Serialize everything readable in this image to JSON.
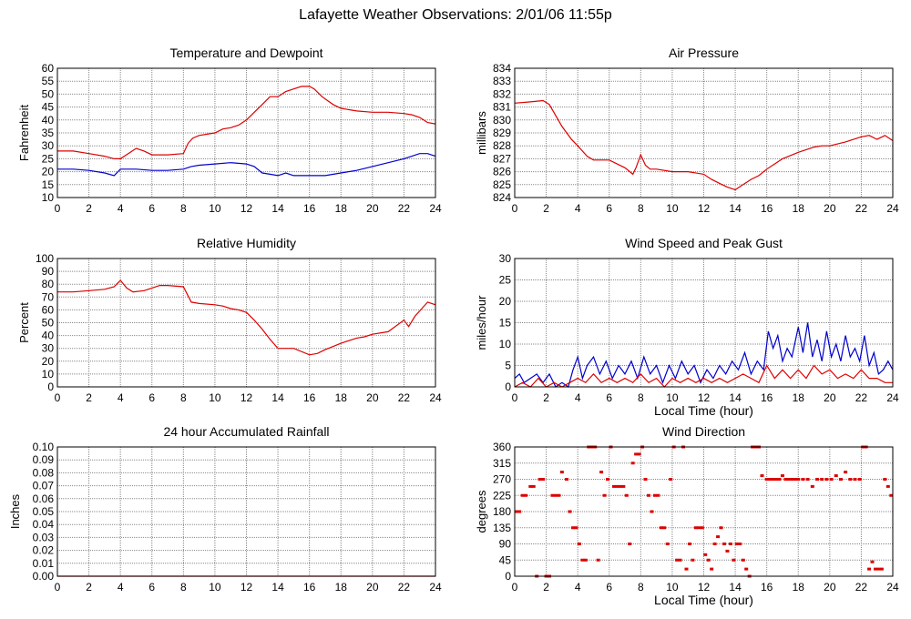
{
  "title": "Lafayette Weather Observations: 2/01/06 11:55p",
  "colors": {
    "red": "#dd0000",
    "blue": "#0000cc",
    "grid": "#888888",
    "frame": "#000000"
  },
  "chart_data": [
    {
      "id": "temperature",
      "type": "line",
      "title": "Temperature and Dewpoint",
      "xlabel": "",
      "ylabel": "Fahrenheit",
      "xlim": [
        0,
        24
      ],
      "ylim": [
        10,
        60
      ],
      "xticks": [
        0,
        2,
        4,
        6,
        8,
        10,
        12,
        14,
        16,
        18,
        20,
        22,
        24
      ],
      "yticks": [
        10,
        15,
        20,
        25,
        30,
        35,
        40,
        45,
        50,
        55,
        60
      ],
      "grid": true,
      "series": [
        {
          "color": "#dd0000",
          "x": [
            0,
            1,
            2,
            3,
            3.6,
            4,
            4.5,
            5,
            5.5,
            6,
            7,
            8,
            8.3,
            8.6,
            9,
            9.5,
            10,
            10.5,
            11,
            11.5,
            12,
            12.5,
            13,
            13.5,
            14,
            14.5,
            15,
            15.5,
            16,
            16.3,
            16.8,
            17.5,
            18,
            19,
            20,
            21,
            22,
            22.5,
            23,
            23.5,
            24
          ],
          "y": [
            28,
            28,
            27,
            26,
            25,
            25,
            27,
            29,
            28,
            26.5,
            26.5,
            27,
            31,
            33,
            34,
            34.5,
            35,
            36.5,
            37,
            38,
            40,
            43,
            46,
            49,
            49,
            51,
            52,
            53,
            53,
            52,
            49,
            46,
            44.5,
            43.5,
            43,
            43,
            42.5,
            42,
            41,
            39,
            38.5
          ]
        },
        {
          "color": "#0000cc",
          "x": [
            0,
            1,
            2,
            3,
            3.6,
            4,
            5,
            6,
            7,
            8,
            8.5,
            9,
            10,
            11,
            12,
            12.5,
            13,
            13.5,
            14,
            14.5,
            15,
            16,
            17,
            18,
            19,
            20,
            21,
            22,
            22.5,
            23,
            23.5,
            24
          ],
          "y": [
            21,
            21,
            20.5,
            19.5,
            18.5,
            21,
            21,
            20.5,
            20.5,
            21,
            22,
            22.5,
            23,
            23.5,
            23,
            22,
            19.5,
            19,
            18.5,
            19.5,
            18.5,
            18.5,
            18.5,
            19.5,
            20.5,
            22,
            23.5,
            25,
            26,
            27,
            27,
            26
          ]
        }
      ]
    },
    {
      "id": "pressure",
      "type": "line",
      "title": "Air Pressure",
      "xlabel": "",
      "ylabel": "millibars",
      "xlim": [
        0,
        24
      ],
      "ylim": [
        824,
        834
      ],
      "xticks": [
        0,
        2,
        4,
        6,
        8,
        10,
        12,
        14,
        16,
        18,
        20,
        22,
        24
      ],
      "yticks": [
        824,
        825,
        826,
        827,
        828,
        829,
        830,
        831,
        832,
        833,
        834
      ],
      "grid": true,
      "series": [
        {
          "color": "#dd0000",
          "x": [
            0,
            1,
            1.8,
            2.2,
            3,
            3.6,
            4,
            4.6,
            5,
            6,
            7,
            7.5,
            7.7,
            8,
            8.3,
            8.6,
            9,
            10,
            11,
            12,
            12.5,
            13,
            13.5,
            14,
            14.5,
            15,
            15.5,
            16,
            16.5,
            17,
            18,
            19,
            19.5,
            20,
            21,
            22,
            22.5,
            23,
            23.5,
            24
          ],
          "y": [
            831.3,
            831.4,
            831.5,
            831.2,
            829.5,
            828.5,
            828,
            827.2,
            826.9,
            826.9,
            826.3,
            825.8,
            826.3,
            827.3,
            826.5,
            826.2,
            826.2,
            826.0,
            826.0,
            825.8,
            825.4,
            825.1,
            824.8,
            824.6,
            825.0,
            825.4,
            825.7,
            826.2,
            826.6,
            827.0,
            827.5,
            827.9,
            828.0,
            828.0,
            828.3,
            828.7,
            828.8,
            828.5,
            828.8,
            828.4
          ]
        }
      ]
    },
    {
      "id": "humidity",
      "type": "line",
      "title": "Relative Humidity",
      "xlabel": "",
      "ylabel": "Percent",
      "xlim": [
        0,
        24
      ],
      "ylim": [
        0,
        100
      ],
      "xticks": [
        0,
        2,
        4,
        6,
        8,
        10,
        12,
        14,
        16,
        18,
        20,
        22,
        24
      ],
      "yticks": [
        0,
        10,
        20,
        30,
        40,
        50,
        60,
        70,
        80,
        90,
        100
      ],
      "grid": true,
      "series": [
        {
          "color": "#dd0000",
          "x": [
            0,
            1,
            2,
            3,
            3.6,
            4,
            4.4,
            4.8,
            5.5,
            6,
            6.5,
            7,
            8,
            8.5,
            9,
            10,
            10.5,
            11,
            11.5,
            12,
            12.5,
            13,
            13.5,
            14,
            14.5,
            15,
            16,
            16.5,
            17,
            18,
            19,
            19.5,
            20,
            21,
            22,
            22.3,
            22.7,
            23.5,
            24
          ],
          "y": [
            74,
            74,
            75,
            76,
            78,
            83,
            77,
            74,
            75,
            77,
            79,
            79,
            78,
            66,
            65,
            64,
            63,
            61,
            60,
            58,
            52,
            45,
            37,
            30,
            30,
            30,
            25,
            26,
            29,
            34,
            38,
            39,
            41,
            43,
            52,
            47,
            55,
            66,
            64
          ]
        }
      ]
    },
    {
      "id": "wind-speed",
      "type": "line",
      "title": "Wind Speed and Peak Gust",
      "xlabel": "Local Time (hour)",
      "ylabel": "miles/hour",
      "xlim": [
        0,
        24
      ],
      "ylim": [
        0,
        30
      ],
      "xticks": [
        0,
        2,
        4,
        6,
        8,
        10,
        12,
        14,
        16,
        18,
        20,
        22,
        24
      ],
      "yticks": [
        0,
        5,
        10,
        15,
        20,
        25,
        30
      ],
      "grid": true,
      "series": [
        {
          "color": "#0000cc",
          "x": [
            0,
            0.3,
            0.6,
            1,
            1.4,
            1.8,
            2.2,
            2.6,
            3,
            3.4,
            3.7,
            4,
            4.3,
            4.6,
            5,
            5.4,
            5.8,
            6.2,
            6.6,
            7,
            7.4,
            7.8,
            8.2,
            8.6,
            9,
            9.4,
            9.8,
            10.2,
            10.6,
            11,
            11.4,
            11.8,
            12.2,
            12.6,
            13,
            13.4,
            13.8,
            14.2,
            14.6,
            15,
            15.4,
            15.8,
            16.1,
            16.4,
            16.7,
            17,
            17.3,
            17.6,
            18,
            18.3,
            18.6,
            18.9,
            19.2,
            19.5,
            19.8,
            20.1,
            20.4,
            20.7,
            21,
            21.3,
            21.6,
            21.9,
            22.2,
            22.5,
            22.8,
            23.1,
            23.4,
            23.7,
            24
          ],
          "y": [
            2,
            3,
            1,
            2,
            3,
            1,
            3,
            0,
            1,
            0,
            4,
            7,
            2,
            5,
            7,
            3,
            6,
            2,
            5,
            3,
            6,
            2,
            7,
            3,
            5,
            1,
            5,
            2,
            6,
            3,
            5,
            1,
            4,
            2,
            5,
            3,
            6,
            4,
            8,
            3,
            6,
            4,
            13,
            9,
            12,
            6,
            9,
            7,
            14,
            8,
            15,
            7,
            11,
            6,
            13,
            7,
            10,
            6,
            12,
            7,
            9,
            6,
            12,
            5,
            8,
            3,
            4,
            6,
            4
          ]
        },
        {
          "color": "#dd0000",
          "x": [
            0,
            0.5,
            1,
            1.5,
            2,
            2.5,
            3,
            3.5,
            4,
            4.5,
            5,
            5.5,
            6,
            6.5,
            7,
            7.5,
            8,
            8.5,
            9,
            9.5,
            10,
            10.5,
            11,
            11.5,
            12,
            12.5,
            13,
            13.5,
            14,
            14.5,
            15,
            15.5,
            16,
            16.5,
            17,
            17.5,
            18,
            18.5,
            19,
            19.5,
            20,
            20.5,
            21,
            21.5,
            22,
            22.5,
            23,
            23.5,
            24
          ],
          "y": [
            0,
            1,
            0,
            2,
            0,
            1,
            0,
            1,
            2,
            1,
            3,
            1,
            2,
            1,
            2,
            1,
            3,
            1,
            2,
            0,
            2,
            1,
            2,
            1,
            2,
            1,
            2,
            1,
            2,
            3,
            2,
            1,
            5,
            2,
            4,
            2,
            4,
            2,
            5,
            3,
            4,
            2,
            3,
            2,
            4,
            2,
            2,
            1,
            1
          ]
        }
      ]
    },
    {
      "id": "rainfall",
      "type": "line",
      "title": "24 hour Accumulated Rainfall",
      "xlabel": "",
      "ylabel": "Inches",
      "xlim": [
        0,
        24
      ],
      "ylim": [
        0,
        0.1
      ],
      "xticks": [
        0,
        2,
        4,
        6,
        8,
        10,
        12,
        14,
        16,
        18,
        20,
        22,
        24
      ],
      "yticks": [
        0.0,
        0.01,
        0.02,
        0.03,
        0.04,
        0.05,
        0.06,
        0.07,
        0.08,
        0.09,
        0.1
      ],
      "ytick_labels": [
        "0.00",
        "0.01",
        "0.02",
        "0.03",
        "0.04",
        "0.05",
        "0.06",
        "0.07",
        "0.08",
        "0.09",
        "0.10"
      ],
      "grid": true,
      "series": [
        {
          "color": "#dd0000",
          "x": [
            0,
            24
          ],
          "y": [
            0,
            0
          ]
        }
      ]
    },
    {
      "id": "wind-direction",
      "type": "scatter",
      "title": "Wind Direction",
      "xlabel": "Local Time (hour)",
      "ylabel": "degrees",
      "xlim": [
        0,
        24
      ],
      "ylim": [
        0,
        360
      ],
      "xticks": [
        0,
        2,
        4,
        6,
        8,
        10,
        12,
        14,
        16,
        18,
        20,
        22,
        24
      ],
      "yticks": [
        0,
        45,
        90,
        135,
        180,
        225,
        270,
        315,
        360
      ],
      "grid": true,
      "series": [
        {
          "color": "#dd0000",
          "x": [
            0.1,
            0.3,
            0.5,
            0.7,
            1.0,
            1.2,
            1.4,
            1.6,
            1.8,
            2.0,
            2.2,
            2.4,
            2.6,
            2.8,
            3.0,
            3.3,
            3.5,
            3.7,
            3.9,
            4.1,
            4.3,
            4.5,
            4.7,
            4.9,
            5.1,
            5.3,
            5.5,
            5.7,
            5.9,
            6.1,
            6.3,
            6.5,
            6.7,
            6.9,
            7.1,
            7.3,
            7.5,
            7.7,
            7.9,
            8.1,
            8.3,
            8.5,
            8.7,
            8.9,
            9.1,
            9.3,
            9.5,
            9.7,
            9.9,
            10.1,
            10.3,
            10.5,
            10.7,
            10.9,
            11.1,
            11.3,
            11.5,
            11.7,
            11.9,
            12.1,
            12.3,
            12.5,
            12.7,
            12.9,
            13.1,
            13.3,
            13.5,
            13.7,
            13.9,
            14.1,
            14.3,
            14.5,
            14.7,
            14.9,
            15.1,
            15.3,
            15.5,
            15.7,
            16.0,
            16.2,
            16.4,
            16.6,
            16.8,
            17.0,
            17.2,
            17.4,
            17.6,
            17.8,
            18.0,
            18.3,
            18.6,
            18.9,
            19.2,
            19.5,
            19.8,
            20.1,
            20.4,
            20.7,
            21.0,
            21.3,
            21.6,
            21.9,
            22.1,
            22.3,
            22.5,
            22.7,
            22.9,
            23.1,
            23.3,
            23.5,
            23.7,
            23.9
          ],
          "y": [
            180,
            180,
            225,
            225,
            250,
            250,
            0,
            270,
            270,
            0,
            0,
            225,
            225,
            225,
            290,
            270,
            180,
            135,
            135,
            90,
            45,
            45,
            360,
            360,
            360,
            45,
            290,
            225,
            270,
            360,
            250,
            250,
            250,
            250,
            225,
            90,
            315,
            340,
            340,
            360,
            270,
            225,
            180,
            225,
            225,
            135,
            135,
            90,
            270,
            360,
            45,
            45,
            360,
            20,
            90,
            45,
            135,
            135,
            135,
            60,
            45,
            20,
            90,
            110,
            135,
            90,
            70,
            90,
            45,
            90,
            90,
            45,
            20,
            0,
            360,
            360,
            360,
            280,
            270,
            270,
            270,
            270,
            270,
            280,
            270,
            270,
            270,
            270,
            270,
            270,
            270,
            250,
            270,
            270,
            270,
            270,
            280,
            270,
            290,
            270,
            270,
            270,
            360,
            360,
            20,
            40,
            20,
            20,
            20,
            270,
            250,
            225
          ]
        }
      ]
    }
  ]
}
